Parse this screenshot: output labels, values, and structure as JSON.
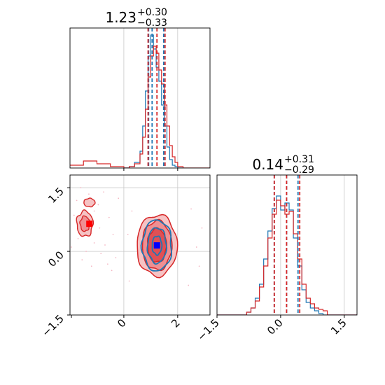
{
  "colors": {
    "primary": "#d62728",
    "secondary": "#1f77b4",
    "marker_primary": "#ff0000",
    "marker_secondary": "#0000ff",
    "grid": "#c8c8c8",
    "axes": "#000000"
  },
  "chart_data": [
    {
      "type": "histogram",
      "panel": "top-left",
      "parameter_index": 0,
      "title": {
        "value": "1.23",
        "plus": "+0.30",
        "minus": "−0.33"
      },
      "xlim": [
        -2.0,
        3.2
      ],
      "grid": true,
      "gridlines_x": [
        0,
        2
      ],
      "quantiles": {
        "primary": [
          0.9,
          1.23,
          1.53
        ],
        "secondary": [
          0.92,
          1.05,
          1.48
        ]
      },
      "series": [
        {
          "color": "#d62728",
          "bin_edges": [
            -2.0,
            -1.5,
            -1.0,
            -0.5,
            0.0,
            0.2,
            0.4,
            0.6,
            0.7,
            0.8,
            0.9,
            1.0,
            1.1,
            1.2,
            1.3,
            1.4,
            1.5,
            1.6,
            1.7,
            1.8,
            1.9,
            2.0,
            2.2,
            3.2
          ],
          "counts": [
            0.02,
            0.05,
            0.03,
            0.01,
            0.0,
            0.01,
            0.03,
            0.1,
            0.22,
            0.42,
            0.65,
            0.8,
            0.87,
            0.82,
            0.7,
            0.6,
            0.45,
            0.3,
            0.16,
            0.08,
            0.04,
            0.01,
            0.0
          ]
        },
        {
          "color": "#1f77b4",
          "bin_edges": [
            0.0,
            0.2,
            0.4,
            0.6,
            0.7,
            0.8,
            0.9,
            1.0,
            1.1,
            1.2,
            1.3,
            1.4,
            1.5,
            1.6,
            1.7,
            1.8,
            1.9,
            2.0,
            2.2
          ],
          "counts": [
            0.0,
            0.01,
            0.04,
            0.12,
            0.3,
            0.55,
            0.8,
            0.95,
            0.85,
            0.72,
            0.62,
            0.45,
            0.3,
            0.15,
            0.06,
            0.02,
            0.01,
            0.0
          ]
        }
      ]
    },
    {
      "type": "histogram",
      "panel": "bottom-right",
      "parameter_index": 1,
      "title": {
        "value": "0.14",
        "plus": "+0.31",
        "minus": "−0.29"
      },
      "xlim": [
        -1.5,
        1.8
      ],
      "grid": true,
      "gridlines_x": [
        0.0,
        1.5
      ],
      "xticks": [
        "−1.5",
        "0.0",
        "1.5"
      ],
      "xtick_values": [
        -1.5,
        0.0,
        1.5
      ],
      "quantiles": {
        "primary": [
          -0.15,
          0.14,
          0.45
        ],
        "secondary": [
          -0.15,
          0.14,
          0.41
        ]
      },
      "series": [
        {
          "color": "#d62728",
          "bin_edges": [
            -1.5,
            -0.8,
            -0.7,
            -0.6,
            -0.5,
            -0.4,
            -0.3,
            -0.2,
            -0.1,
            0.0,
            0.1,
            0.2,
            0.3,
            0.4,
            0.5,
            0.6,
            0.7,
            0.8,
            0.9,
            1.0,
            1.1,
            1.8
          ],
          "counts": [
            0.0,
            0.02,
            0.05,
            0.1,
            0.2,
            0.35,
            0.55,
            0.72,
            0.82,
            0.78,
            0.72,
            0.74,
            0.58,
            0.4,
            0.22,
            0.12,
            0.08,
            0.05,
            0.04,
            0.03,
            0.0
          ]
        },
        {
          "color": "#1f77b4",
          "bin_edges": [
            -1.5,
            -0.8,
            -0.7,
            -0.6,
            -0.5,
            -0.4,
            -0.3,
            -0.2,
            -0.1,
            0.0,
            0.1,
            0.2,
            0.3,
            0.4,
            0.5,
            0.6,
            0.7,
            0.8,
            0.9,
            1.0,
            1.8
          ],
          "counts": [
            0.0,
            0.02,
            0.05,
            0.12,
            0.22,
            0.4,
            0.6,
            0.76,
            0.85,
            0.75,
            0.8,
            0.75,
            0.55,
            0.35,
            0.18,
            0.09,
            0.05,
            0.03,
            0.01,
            0.0
          ]
        }
      ]
    },
    {
      "type": "contour",
      "panel": "bottom-left",
      "xlim": [
        -2.0,
        3.2
      ],
      "ylim": [
        -1.5,
        1.8
      ],
      "grid": true,
      "gridlines_x": [
        0,
        2
      ],
      "gridlines_y": [
        0.0,
        1.5
      ],
      "xticks": [
        "0",
        "2"
      ],
      "xtick_values": [
        0,
        2
      ],
      "yticks": [
        "−1.5",
        "0.0",
        "1.5"
      ],
      "ytick_values": [
        -1.5,
        0.0,
        1.5
      ],
      "primary": {
        "color": "#d62728",
        "center": [
          1.23,
          0.14
        ],
        "levels": [
          {
            "rx": 0.75,
            "ry": 0.72,
            "fill": "#f6c3c4"
          },
          {
            "rx": 0.55,
            "ry": 0.58,
            "fill": "#ef8f92"
          },
          {
            "rx": 0.35,
            "ry": 0.4,
            "fill": "#e05055"
          }
        ],
        "secondary_mode": {
          "center": [
            -1.45,
            0.65
          ],
          "levels": [
            {
              "rx": 0.3,
              "ry": 0.3
            },
            {
              "rx": 0.17,
              "ry": 0.18
            }
          ],
          "blob": [
            -1.28,
            1.15
          ]
        }
      },
      "secondary": {
        "color": "#1f77b4",
        "center": [
          1.23,
          0.14
        ],
        "levels": [
          {
            "rx": 0.55,
            "ry": 0.6
          },
          {
            "rx": 0.35,
            "ry": 0.42
          },
          {
            "rx": 0.18,
            "ry": 0.22
          }
        ]
      },
      "markers": [
        {
          "x": -1.28,
          "y": 0.65,
          "color": "#ff0000"
        },
        {
          "x": 1.23,
          "y": 0.14,
          "color": "#0000ff"
        }
      ],
      "samples": [
        [
          -1.6,
          1.5
        ],
        [
          -1.3,
          1.35
        ],
        [
          -1.75,
          1.2
        ],
        [
          -0.95,
          1.1
        ],
        [
          -1.1,
          0.95
        ],
        [
          -1.85,
          0.85
        ],
        [
          -0.9,
          0.55
        ],
        [
          -1.7,
          0.3
        ],
        [
          -1.1,
          0.2
        ],
        [
          -0.7,
          0.15
        ],
        [
          -1.4,
          0.0
        ],
        [
          -0.85,
          -0.05
        ],
        [
          -0.6,
          -0.3
        ],
        [
          -1.2,
          -0.35
        ],
        [
          -0.4,
          0.4
        ],
        [
          -0.55,
          0.8
        ],
        [
          -0.3,
          -0.15
        ],
        [
          -1.55,
          -0.2
        ],
        [
          -0.2,
          1.25
        ],
        [
          -0.75,
          1.4
        ],
        [
          -1.95,
          0.1
        ],
        [
          -0.45,
          -0.45
        ],
        [
          2.9,
          0.55
        ],
        [
          2.7,
          0.1
        ],
        [
          2.8,
          -0.35
        ],
        [
          0.3,
          0.95
        ],
        [
          0.2,
          -0.7
        ],
        [
          2.5,
          1.0
        ],
        [
          0.15,
          0.4
        ],
        [
          2.4,
          -0.8
        ]
      ]
    }
  ]
}
